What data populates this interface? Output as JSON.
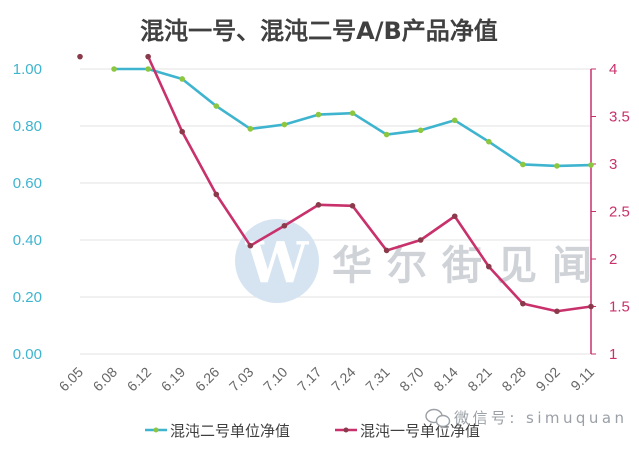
{
  "chart_data": {
    "type": "line",
    "title": "混沌一号、混沌二号A/B产品净值",
    "categories": [
      "6.05",
      "6.08",
      "6.12",
      "6.19",
      "6.26",
      "7.03",
      "7.10",
      "7.17",
      "7.24",
      "7.31",
      "8.70",
      "8.14",
      "8.21",
      "8.28",
      "9.02",
      "9.11"
    ],
    "series": [
      {
        "name": "混沌二号单位净值",
        "axis": "left",
        "color": "#3fb4cf",
        "marker_color": "#8dc63f",
        "values": [
          null,
          1.0,
          1.0,
          0.965,
          0.87,
          0.79,
          0.805,
          0.84,
          0.845,
          0.77,
          0.785,
          0.82,
          0.745,
          0.665,
          0.66,
          0.663
        ]
      },
      {
        "name": "混沌一号单位净值",
        "axis": "right",
        "color": "#c8316b",
        "marker_color": "#8a3a4a",
        "values": [
          4.13,
          null,
          4.13,
          3.34,
          2.68,
          2.14,
          2.35,
          2.57,
          2.56,
          2.09,
          2.2,
          2.45,
          1.92,
          1.53,
          1.45,
          1.5
        ]
      }
    ],
    "y_left": {
      "ticks": [
        "0.00",
        "0.20",
        "0.40",
        "0.60",
        "0.80",
        "1.00"
      ],
      "min": 0,
      "max": 1.0,
      "color": "#3fb4cf"
    },
    "y_right": {
      "ticks": [
        "1",
        "1.5",
        "2",
        "2.5",
        "3",
        "3.5",
        "4"
      ],
      "min": 1,
      "max": 4,
      "color": "#c8316b"
    },
    "grid": true,
    "legend": "bottom"
  },
  "watermark": {
    "logo_letter": "W",
    "text": "华尔街见闻",
    "sub_text": "微信号: simuquan",
    "sub_icon": "wechat-icon"
  }
}
